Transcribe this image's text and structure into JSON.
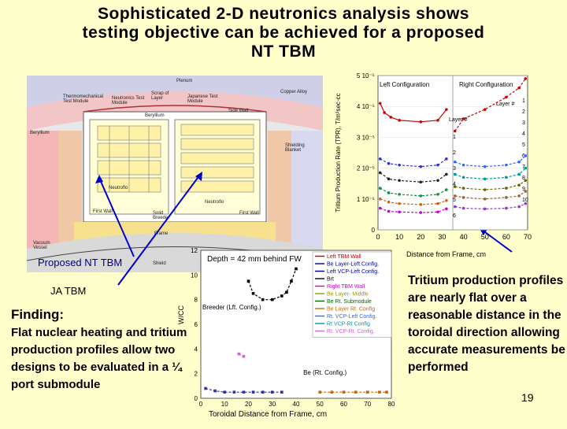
{
  "title": {
    "line1": "Sophisticated 2-D neutronics analysis shows",
    "line2": "testing objective can be achieved for a proposed",
    "line3": "NT TBM"
  },
  "diagram": {
    "labels": {
      "plenum": "Plenum",
      "thermo": "Thermomechanical Test Module",
      "neutronics": "Neutronics Test Module",
      "scrap": "Scrap of Layer",
      "japanese": "Japanese Test Module",
      "copper": "Copper Alloy",
      "side_wall": "Side Wall",
      "beryllium_top": "Beryllium",
      "beryllium_left": "Beryllium",
      "shield_right": "Shielding Blanket",
      "neutroflo": "Neutroflo",
      "first_wall": "First Wall",
      "first_wall2": "First Wall",
      "solid": "Solid Breeder",
      "frame": "Frame",
      "vacuum": "Vacuum Vessel",
      "shield": "Shield"
    },
    "callouts": {
      "nt_tbm": "Proposed NT TBM",
      "ja_tbm": "JA TBM"
    }
  },
  "finding": {
    "heading": "Finding:",
    "body": "Flat nuclear heating and tritium production profiles allow two designs to be evaluated in a ¼ port submodule"
  },
  "right_text": "Tritium production profiles are nearly flat over a reasonable distance in the toroidal direction allowing accurate measurements be performed",
  "page_number": "19",
  "chart_data": [
    {
      "type": "line",
      "ylabel": "Tritium Production Rate (TPR), T/m³sec·cc",
      "xlabel": "Distance from Frame, cm",
      "yticks": [
        "0",
        "1 10⁻⁵",
        "2 10⁻⁵",
        "3 10⁻⁵",
        "4 10⁻⁵",
        "5 10⁻⁵"
      ],
      "xticks": [
        "0",
        "10",
        "20",
        "30",
        "40",
        "50",
        "60",
        "70"
      ],
      "ylim": [
        0,
        5e-05
      ],
      "xlim": [
        0,
        70
      ],
      "header_left": "Left Configuration",
      "header_right": "Right Configuration",
      "annotations": {
        "layer_hash": "Layer #",
        "layer_hash2": "Layer #"
      },
      "left_layer_labels": [
        "1",
        "2",
        "3",
        "4",
        "5",
        "6"
      ],
      "right_layer_labels": [
        "1",
        "2",
        "3",
        "4",
        "5",
        "6",
        "7",
        "8",
        "9",
        "10"
      ],
      "series": [
        {
          "color": "#cc0000",
          "x": [
            1,
            3,
            6,
            10,
            20,
            28,
            32
          ],
          "y": [
            4.1e-05,
            3.8e-05,
            3.65e-05,
            3.55e-05,
            3.5e-05,
            3.55e-05,
            3.9e-05
          ]
        },
        {
          "color": "#3333cc",
          "x": [
            1,
            5,
            10,
            20,
            28,
            32
          ],
          "y": [
            2.3e-05,
            2.15e-05,
            2.1e-05,
            2.05e-05,
            2.1e-05,
            2.3e-05
          ]
        },
        {
          "color": "#222222",
          "x": [
            1,
            5,
            10,
            20,
            28,
            32
          ],
          "y": [
            1.85e-05,
            1.65e-05,
            1.6e-05,
            1.55e-05,
            1.6e-05,
            1.8e-05
          ]
        },
        {
          "color": "#009933",
          "x": [
            1,
            5,
            10,
            20,
            28,
            32
          ],
          "y": [
            1.35e-05,
            1.2e-05,
            1.15e-05,
            1.1e-05,
            1.15e-05,
            1.3e-05
          ]
        },
        {
          "color": "#cc6600",
          "x": [
            1,
            5,
            10,
            20,
            28,
            32
          ],
          "y": [
            1e-05,
            9e-06,
            8.5e-06,
            8.2e-06,
            8.5e-06,
            9.5e-06
          ]
        },
        {
          "color": "#cc00cc",
          "x": [
            1,
            5,
            10,
            20,
            28,
            32
          ],
          "y": [
            7e-06,
            6e-06,
            5.8e-06,
            5.6e-06,
            5.8e-06,
            6.8e-06
          ]
        },
        {
          "color": "#cc0000",
          "x": [
            36,
            40,
            50,
            60,
            66,
            69
          ],
          "y": [
            3.2e-05,
            3.6e-05,
            3.9e-05,
            4.3e-05,
            4.6e-05,
            4.9e-05
          ]
        },
        {
          "color": "#3366ff",
          "x": [
            36,
            40,
            50,
            60,
            66,
            69
          ],
          "y": [
            2.2e-05,
            2.1e-05,
            2.05e-05,
            2.1e-05,
            2.2e-05,
            2.4e-05
          ]
        },
        {
          "color": "#009999",
          "x": [
            36,
            40,
            50,
            60,
            66,
            69
          ],
          "y": [
            1.8e-05,
            1.7e-05,
            1.65e-05,
            1.7e-05,
            1.8e-05,
            2e-05
          ]
        },
        {
          "color": "#666600",
          "x": [
            36,
            40,
            50,
            60,
            66,
            69
          ],
          "y": [
            1.4e-05,
            1.35e-05,
            1.3e-05,
            1.35e-05,
            1.45e-05,
            1.6e-05
          ]
        },
        {
          "color": "#996633",
          "x": [
            36,
            40,
            50,
            60,
            66,
            69
          ],
          "y": [
            1.1e-05,
            1.05e-05,
            1e-05,
            1.05e-05,
            1.1e-05,
            1.25e-05
          ]
        },
        {
          "color": "#9933cc",
          "x": [
            36,
            40,
            50,
            60,
            66,
            69
          ],
          "y": [
            7.5e-06,
            7e-06,
            6.8e-06,
            7e-06,
            7.5e-06,
            8.5e-06
          ]
        }
      ]
    },
    {
      "type": "line",
      "title": "Depth = 42 mm behind FW",
      "ylabel": "W/CC",
      "xlabel": "Toroidal Distance from Frame, cm",
      "yticks": [
        "0",
        "2",
        "4",
        "6",
        "8",
        "10",
        "12"
      ],
      "xticks": [
        "0",
        "10",
        "20",
        "30",
        "40",
        "50",
        "60",
        "70",
        "80"
      ],
      "ylim": [
        0,
        12
      ],
      "xlim": [
        0,
        80
      ],
      "annotations": {
        "breeder_left": "Breeder (Lft. Config.)",
        "breeder_right": "Be (Rt. Config.)"
      },
      "legend": [
        {
          "name": "Left TBM Wall",
          "color": "#cc0000"
        },
        {
          "name": "Be Layer-Left Config.",
          "color": "#000099"
        },
        {
          "name": "Left VCP-Left Config.",
          "color": "#000099"
        },
        {
          "name": "Brt",
          "color": "#000000"
        },
        {
          "name": "Right TBM Wall",
          "color": "#cc00cc"
        },
        {
          "name": "Be Layer- Middle",
          "color": "#999900"
        },
        {
          "name": "Be Rt. Submodule",
          "color": "#006600"
        },
        {
          "name": "Be Layer Rt. Config",
          "color": "#cc6600"
        },
        {
          "name": "Rt. VCP-Left Config.",
          "color": "#3366ff"
        },
        {
          "name": "Rt VCP-Rt Config",
          "color": "#009999"
        },
        {
          "name": "Rt. VCP-Rt. Config.",
          "color": "#cc66cc"
        }
      ],
      "series": [
        {
          "color": "#000000",
          "x": [
            20,
            22,
            26,
            30,
            34,
            36,
            38,
            40
          ],
          "y": [
            9.5,
            8.5,
            8.0,
            8.0,
            8.3,
            8.6,
            9.5,
            10.5
          ]
        },
        {
          "color": "#cc66cc",
          "x": [
            16,
            18
          ],
          "y": [
            3.6,
            3.4
          ]
        },
        {
          "color": "#333399",
          "x": [
            2,
            6,
            10,
            14,
            18,
            22,
            26,
            30,
            34
          ],
          "y": [
            0.8,
            0.6,
            0.5,
            0.5,
            0.5,
            0.5,
            0.5,
            0.5,
            0.5
          ]
        },
        {
          "color": "#cc6600",
          "x": [
            50,
            55,
            60,
            65,
            70,
            75,
            78
          ],
          "y": [
            0.5,
            0.5,
            0.5,
            0.5,
            0.5,
            0.5,
            0.5
          ]
        }
      ]
    }
  ]
}
